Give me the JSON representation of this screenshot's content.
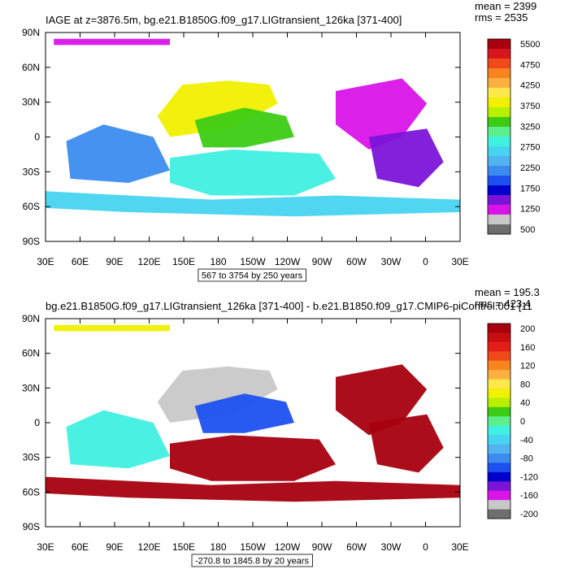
{
  "chart_data": [
    {
      "type": "heatmap",
      "title": "IAGE at z=3876.5m, bg.e21.B1850G.f09_g17.LIGtransient_126ka [371-400]",
      "stats": {
        "mean": "mean = 2399",
        "rms": "rms = 2535"
      },
      "range_label": "567 to 3754 by 250 years",
      "xlabel": "",
      "ylabel": "",
      "x_ticks": [
        "30E",
        "60E",
        "90E",
        "120E",
        "150E",
        "180",
        "150W",
        "120W",
        "90W",
        "60W",
        "30W",
        "0",
        "30E"
      ],
      "y_ticks": [
        "90N",
        "60N",
        "30N",
        "0",
        "30S",
        "60S",
        "90S"
      ],
      "colorbar": {
        "labels": [
          "5500",
          "4750",
          "4250",
          "3750",
          "3250",
          "2750",
          "2250",
          "1750",
          "1250",
          "500"
        ],
        "colors": [
          "#a8000e",
          "#d6161c",
          "#f04a1a",
          "#f7841e",
          "#fbb040",
          "#ffe84c",
          "#f0f000",
          "#b8f000",
          "#3ccc14",
          "#5cf08c",
          "#40f0e0",
          "#48d4f0",
          "#50b4f0",
          "#3c8cf0",
          "#1c50f0",
          "#0000cc",
          "#7c14d8",
          "#d814e8",
          "#c8c8c8",
          "#6e6e6e"
        ]
      },
      "regions": [
        {
          "name": "arctic-band",
          "color": "#d814e8"
        },
        {
          "name": "north-pacific",
          "color": "#f0f000"
        },
        {
          "name": "central-pacific",
          "color": "#3ccc14"
        },
        {
          "name": "indian-ocean",
          "color": "#3c8cf0"
        },
        {
          "name": "south-pacific",
          "color": "#40f0e0"
        },
        {
          "name": "atlantic",
          "color": "#d814e8"
        },
        {
          "name": "south-atlantic",
          "color": "#7c14d8"
        },
        {
          "name": "southern-ocean",
          "color": "#48d4f0"
        }
      ]
    },
    {
      "type": "heatmap",
      "title": "bg.e21.B1850G.f09_g17.LIGtransient_126ka [371-400] - b.e21.B1850.f09_g17.CMIP6-piControl.001 [11",
      "stats": {
        "mean": "mean = 195.3",
        "rms": "rms = 423.4"
      },
      "range_label": "-270.8 to 1845.8 by 20 years",
      "xlabel": "",
      "ylabel": "",
      "x_ticks": [
        "30E",
        "60E",
        "90E",
        "120E",
        "150E",
        "180",
        "150W",
        "120W",
        "90W",
        "60W",
        "30W",
        "0",
        "30E"
      ],
      "y_ticks": [
        "90N",
        "60N",
        "30N",
        "0",
        "30S",
        "60S",
        "90S"
      ],
      "colorbar": {
        "labels": [
          "200",
          "160",
          "120",
          "80",
          "40",
          "0",
          "-40",
          "-80",
          "-120",
          "-160",
          "-200"
        ],
        "colors": [
          "#a8000e",
          "#c80e10",
          "#e61e1a",
          "#f04a1a",
          "#f7841e",
          "#fbb040",
          "#ffe84c",
          "#f0f000",
          "#b8f000",
          "#3ccc14",
          "#5cf08c",
          "#40f0e0",
          "#48d4f0",
          "#50b4f0",
          "#3c8cf0",
          "#1c50f0",
          "#0000cc",
          "#7c14d8",
          "#d814e8",
          "#c8c8c8",
          "#6e6e6e"
        ]
      },
      "regions": [
        {
          "name": "arctic-band",
          "color": "#f0f000"
        },
        {
          "name": "north-pacific",
          "color": "#c8c8c8"
        },
        {
          "name": "central-pacific",
          "color": "#1c50f0"
        },
        {
          "name": "indian-ocean",
          "color": "#40f0e0"
        },
        {
          "name": "south-pacific",
          "color": "#a8000e"
        },
        {
          "name": "atlantic",
          "color": "#a8000e"
        },
        {
          "name": "south-atlantic",
          "color": "#a8000e"
        },
        {
          "name": "southern-ocean",
          "color": "#a8000e"
        }
      ]
    }
  ]
}
